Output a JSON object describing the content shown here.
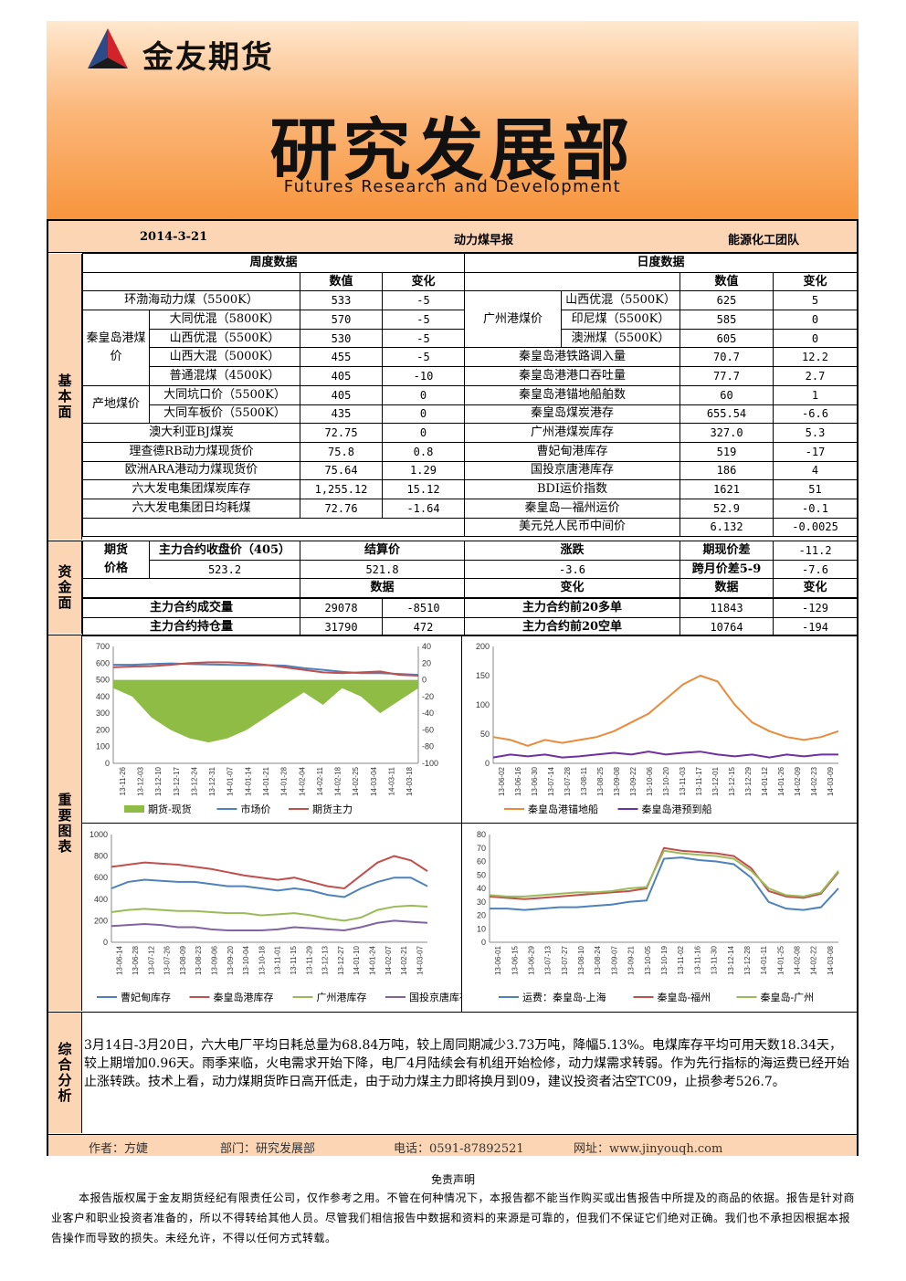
{
  "header": {
    "brand": "金友期货",
    "dept": "研究发展部",
    "dept_en": "Futures Research and Development"
  },
  "title_bar": {
    "date": "2014-3-21",
    "report": "动力煤早报",
    "team": "能源化工团队"
  },
  "sections": {
    "fundamental": "基本面",
    "capital": "资金面",
    "charts": "重要图表",
    "analysis": "综合分析"
  },
  "weekly": {
    "title": "周度数据",
    "col_value": "数值",
    "col_change": "变化",
    "rows": [
      {
        "group": "",
        "name": "环渤海动力煤（5500K）",
        "value": "533",
        "change": "-5"
      },
      {
        "group": "秦皇岛港煤价",
        "name": "大同优混（5800K）",
        "value": "570",
        "change": "-5"
      },
      {
        "group": "",
        "name": "山西优混（5500K）",
        "value": "530",
        "change": "-5"
      },
      {
        "group": "",
        "name": "山西大混（5000K）",
        "value": "455",
        "change": "-5"
      },
      {
        "group": "",
        "name": "普通混煤（4500K）",
        "value": "405",
        "change": "-10"
      },
      {
        "group": "产地煤价",
        "name": "大同坑口价（5500K）",
        "value": "405",
        "change": "0"
      },
      {
        "group": "",
        "name": "大同车板价（5500K）",
        "value": "435",
        "change": "0"
      },
      {
        "group": "",
        "name": "澳大利亚BJ煤炭",
        "value": "72.75",
        "change": "0"
      },
      {
        "group": "",
        "name": "理查德RB动力煤现货价",
        "value": "75.8",
        "change": "0.8"
      },
      {
        "group": "",
        "name": "欧洲ARA港动力煤现货价",
        "value": "75.64",
        "change": "1.29"
      },
      {
        "group": "",
        "name": "六大发电集团煤炭库存",
        "value": "1,255.12",
        "change": "15.12"
      },
      {
        "group": "",
        "name": "六大发电集团日均耗煤",
        "value": "72.76",
        "change": "-1.64"
      }
    ]
  },
  "daily": {
    "title": "日度数据",
    "col_value": "数值",
    "col_change": "变化",
    "gz_group": "广州港煤价",
    "rows": [
      {
        "name": "山西优混（5500K）",
        "value": "625",
        "change": "5"
      },
      {
        "name": "印尼煤（5500K）",
        "value": "585",
        "change": "0"
      },
      {
        "name": "澳洲煤（5500K）",
        "value": "605",
        "change": "0"
      },
      {
        "name": "秦皇岛港铁路调入量",
        "value": "70.7",
        "change": "12.2"
      },
      {
        "name": "秦皇岛港港口吞吐量",
        "value": "77.7",
        "change": "2.7"
      },
      {
        "name": "秦皇岛港锚地船舶数",
        "value": "60",
        "change": "1"
      },
      {
        "name": "秦皇岛煤炭港存",
        "value": "655.54",
        "change": "-6.6"
      },
      {
        "name": "广州港煤炭库存",
        "value": "327.0",
        "change": "5.3"
      },
      {
        "name": "曹妃甸港库存",
        "value": "519",
        "change": "-17"
      },
      {
        "name": "国投京唐港库存",
        "value": "186",
        "change": "4"
      },
      {
        "name": "BDI运价指数",
        "value": "1621",
        "change": "51"
      },
      {
        "name": "秦皇岛—福州运价",
        "value": "52.9",
        "change": "-0.1"
      },
      {
        "name": "美元兑人民币中间价",
        "value": "6.132",
        "change": "-0.0025"
      }
    ]
  },
  "capital": {
    "futures_price_label1": "期货",
    "futures_price_label2": "价格",
    "main_close_label": "主力合约收盘价（405）",
    "main_close": "523.2",
    "settle_label": "结算价",
    "settle": "521.8",
    "change_label": "涨跌",
    "change": "-3.6",
    "basis_label": "期现价差",
    "basis": "-11.2",
    "spread_label": "跨月价差5-9",
    "spread": "-7.6",
    "col_data": "数据",
    "col_change": "变化",
    "volume_label": "主力合约成交量",
    "volume": "29078",
    "volume_change": "-8510",
    "oi_label": "主力合约持仓量",
    "oi": "31790",
    "oi_change": "472",
    "long20_label": "主力合约前20多单",
    "long20": "11843",
    "long20_change": "-129",
    "short20_label": "主力合约前20空单",
    "short20": "10764",
    "short20_change": "-194"
  },
  "chart_data": [
    {
      "type": "line",
      "yticks_left": [
        "700",
        "600",
        "500",
        "400",
        "300",
        "200",
        "100",
        "0"
      ],
      "yticks_right": [
        "40",
        "20",
        "0",
        "-20",
        "-40",
        "-60",
        "-80",
        "-100"
      ],
      "x": [
        "13-11-26",
        "13-12-03",
        "13-12-10",
        "13-12-17",
        "13-12-24",
        "13-12-31",
        "14-01-07",
        "14-01-14",
        "14-01-21",
        "14-01-28",
        "14-02-04",
        "14-02-11",
        "14-02-18",
        "14-02-25",
        "14-03-04",
        "14-03-11",
        "14-03-18"
      ],
      "legend": [
        "期货-现货",
        "市场价",
        "期货主力"
      ],
      "colors": [
        "#8fbc45",
        "#4f81bd",
        "#c0504d"
      ],
      "series": [
        {
          "name": "市场价",
          "values": [
            590,
            590,
            595,
            598,
            595,
            592,
            590,
            588,
            588,
            585,
            570,
            560,
            548,
            540,
            540,
            535,
            530
          ]
        },
        {
          "name": "期货主力",
          "values": [
            575,
            580,
            582,
            590,
            600,
            605,
            605,
            600,
            590,
            575,
            560,
            545,
            540,
            545,
            550,
            530,
            525
          ]
        },
        {
          "name": "期货-现货",
          "values": [
            -10,
            -20,
            -45,
            -60,
            -70,
            -75,
            -70,
            -60,
            -45,
            -30,
            -15,
            -30,
            -10,
            -20,
            -40,
            -25,
            -10
          ]
        }
      ]
    },
    {
      "type": "line",
      "yticks": [
        "200",
        "150",
        "100",
        "50",
        "0"
      ],
      "x": [
        "13-06-02",
        "13-06-16",
        "13-06-30",
        "13-07-14",
        "13-07-28",
        "13-08-11",
        "13-08-25",
        "13-09-08",
        "13-09-22",
        "13-10-06",
        "13-10-20",
        "13-11-03",
        "13-11-17",
        "13-12-01",
        "13-12-15",
        "13-12-29",
        "14-01-12",
        "14-01-26",
        "14-02-09",
        "14-02-23",
        "14-03-09"
      ],
      "legend": [
        "秦皇岛港锚地船",
        "秦皇岛港预到船"
      ],
      "colors": [
        "#e98b3a",
        "#7030a0"
      ],
      "series": [
        {
          "name": "秦皇岛港锚地船",
          "values": [
            45,
            40,
            30,
            40,
            35,
            40,
            45,
            55,
            70,
            85,
            110,
            135,
            150,
            140,
            100,
            70,
            55,
            45,
            40,
            45,
            55
          ]
        },
        {
          "name": "秦皇岛港预到船",
          "values": [
            10,
            15,
            12,
            15,
            10,
            12,
            15,
            18,
            15,
            20,
            15,
            18,
            20,
            15,
            12,
            15,
            10,
            15,
            12,
            15,
            15
          ]
        }
      ]
    },
    {
      "type": "line",
      "yticks": [
        "1000",
        "800",
        "600",
        "400",
        "200",
        "0"
      ],
      "x": [
        "13-06-14",
        "13-06-28",
        "13-07-12",
        "13-07-26",
        "13-08-09",
        "13-08-23",
        "13-09-06",
        "13-09-20",
        "13-10-04",
        "13-10-18",
        "13-11-01",
        "13-11-15",
        "13-11-29",
        "13-12-13",
        "13-12-27",
        "14-01-10",
        "14-01-24",
        "14-02-07",
        "14-02-21",
        "14-03-07"
      ],
      "legend": [
        "曹妃甸库存",
        "秦皇岛港库存",
        "广州港库存",
        "国投京唐库存"
      ],
      "colors": [
        "#4f81bd",
        "#c0504d",
        "#9bbb59",
        "#8064a2"
      ],
      "series": [
        {
          "name": "曹妃甸库存",
          "values": [
            500,
            560,
            580,
            570,
            560,
            560,
            540,
            520,
            520,
            500,
            480,
            500,
            480,
            440,
            420,
            500,
            560,
            600,
            600,
            520
          ]
        },
        {
          "name": "秦皇岛港库存",
          "values": [
            700,
            720,
            740,
            730,
            720,
            700,
            680,
            650,
            620,
            600,
            580,
            600,
            560,
            520,
            500,
            620,
            740,
            800,
            760,
            660
          ]
        },
        {
          "name": "广州港库存",
          "values": [
            280,
            300,
            310,
            300,
            290,
            290,
            280,
            270,
            270,
            250,
            260,
            270,
            250,
            220,
            200,
            230,
            300,
            330,
            340,
            330
          ]
        },
        {
          "name": "国投京唐库存",
          "values": [
            150,
            160,
            170,
            160,
            140,
            140,
            120,
            110,
            110,
            110,
            120,
            140,
            130,
            120,
            110,
            140,
            180,
            200,
            190,
            180
          ]
        }
      ]
    },
    {
      "type": "line",
      "yticks": [
        "80",
        "70",
        "60",
        "50",
        "40",
        "30",
        "20",
        "10",
        "0"
      ],
      "x": [
        "13-06-01",
        "13-06-15",
        "13-06-29",
        "13-07-13",
        "13-07-27",
        "13-08-10",
        "13-08-24",
        "13-09-07",
        "13-09-21",
        "13-10-05",
        "13-10-19",
        "13-11-02",
        "13-11-16",
        "13-11-30",
        "13-12-14",
        "13-12-28",
        "14-01-11",
        "14-01-25",
        "14-02-08",
        "14-02-22",
        "14-03-08"
      ],
      "legend": [
        "运费：秦皇岛-上海",
        "秦皇岛-福州",
        "秦皇岛-广州"
      ],
      "colors": [
        "#4f81bd",
        "#c0504d",
        "#9bbb59"
      ],
      "series": [
        {
          "name": "运费：秦皇岛-上海",
          "values": [
            25,
            25,
            24,
            25,
            26,
            26,
            27,
            28,
            30,
            31,
            62,
            63,
            61,
            60,
            58,
            48,
            30,
            25,
            24,
            26,
            40
          ]
        },
        {
          "name": "秦皇岛-福州",
          "values": [
            34,
            33,
            32,
            33,
            34,
            35,
            36,
            37,
            38,
            40,
            70,
            68,
            67,
            66,
            64,
            55,
            38,
            34,
            33,
            36,
            52
          ]
        },
        {
          "name": "秦皇岛-广州",
          "values": [
            35,
            34,
            34,
            35,
            36,
            37,
            37,
            38,
            40,
            41,
            68,
            66,
            65,
            64,
            62,
            53,
            40,
            35,
            34,
            37,
            53
          ]
        }
      ]
    }
  ],
  "analysis": "3月14日-3月20日，六大电厂平均日耗总量为68.84万吨，较上周同期减少3.73万吨，降幅5.13%。电煤库存平均可用天数18.34天，较上期增加0.96天。雨季来临，火电需求开始下降，电厂4月陆续会有机组开始检修，动力煤需求转弱。作为先行指标的海运费已经开始止涨转跌。技术上看，动力煤期货昨日高开低走，由于动力煤主力即将换月到09，建议投资者沽空TC09，止损参考526.7。",
  "footer": {
    "author": "作者：方婕",
    "department": "部门：研究发展部",
    "phone": "电话：0591-87892521",
    "website": "网址：www.jinyouqh.com"
  },
  "disclaimer": {
    "title": "免责声明",
    "text": "本报告版权属于金友期货经纪有限责任公司，仅作参考之用。不管在何种情况下，本报告都不能当作购买或出售报告中所提及的商品的依据。报告是针对商业客户和职业投资者准备的，所以不得转给其他人员。尽管我们相信报告中数据和资料的来源是可靠的，但我们不保证它们绝对正确。我们也不承担因根据本报告操作而导致的损失。未经允许，不得以任何方式转载。"
  }
}
